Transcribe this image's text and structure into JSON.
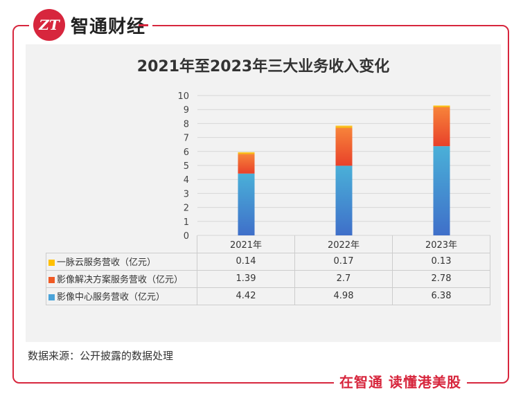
{
  "brand": {
    "logo_text": "ZT",
    "name": "智通财经"
  },
  "footer": {
    "source": "数据来源：公开披露的数据处理",
    "slogan": "在智通  读懂港美股"
  },
  "colors": {
    "frame": "#d7263d",
    "cloud": "#ffc000",
    "solutions": "#f05a24",
    "center": "#4aa3d9"
  },
  "chart_data": {
    "type": "bar",
    "stacked": true,
    "title": "2021年至2023年三大业务收入变化",
    "categories": [
      "2021年",
      "2022年",
      "2023年"
    ],
    "ylim": [
      0,
      10
    ],
    "yticks": [
      "0",
      "1",
      "2",
      "3",
      "4",
      "5",
      "6",
      "7",
      "8",
      "9",
      "10"
    ],
    "grid": true,
    "series": [
      {
        "name": "影像中心服务营收（亿元）",
        "values": [
          4.42,
          4.98,
          6.38
        ],
        "labels": [
          "4.42",
          "4.98",
          "6.38"
        ]
      },
      {
        "name": "影像解决方案服务营收（亿元）",
        "values": [
          1.39,
          2.7,
          2.78
        ],
        "labels": [
          "1.39",
          "2.7",
          "2.78"
        ]
      },
      {
        "name": "一脉云服务营收（亿元）",
        "values": [
          0.14,
          0.17,
          0.13
        ],
        "labels": [
          "0.14",
          "0.17",
          "0.13"
        ]
      }
    ],
    "table_order": [
      2,
      1,
      0
    ]
  }
}
